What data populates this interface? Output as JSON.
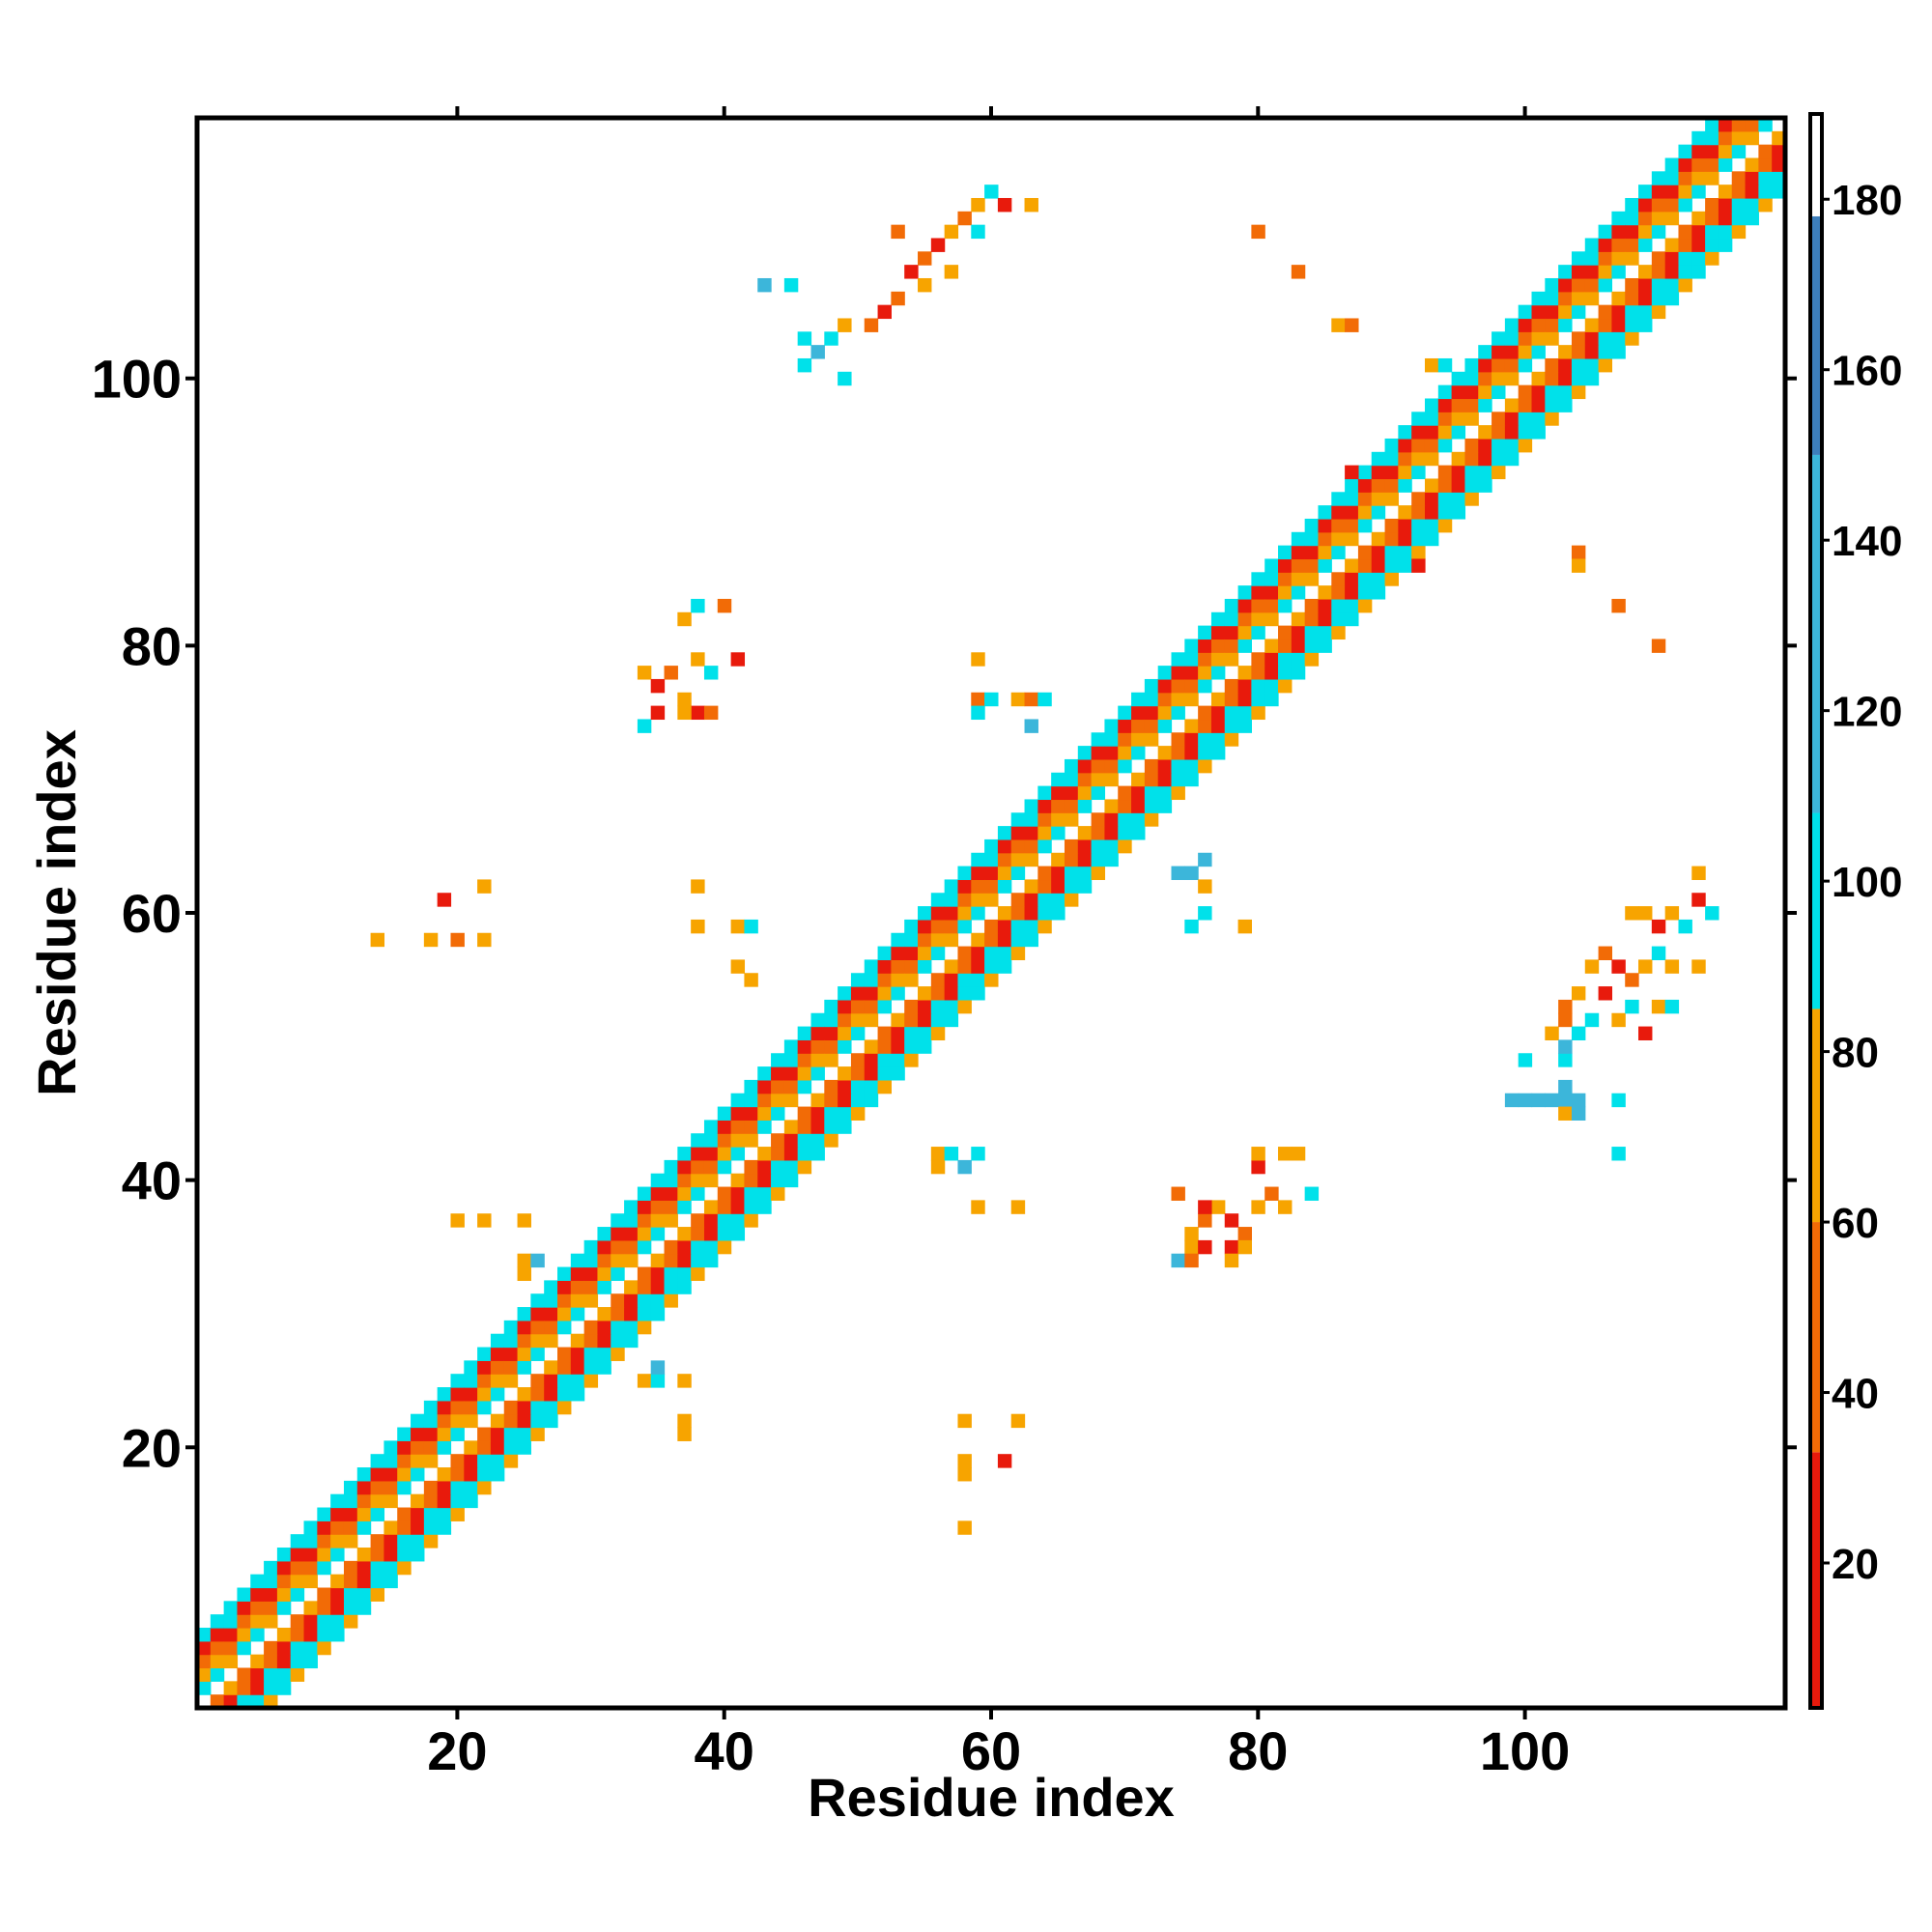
{
  "chart_data": {
    "type": "heatmap",
    "title": "",
    "xlabel": "Residue index",
    "ylabel": "Residue index",
    "xlim": [
      0.5,
      119.5
    ],
    "ylim": [
      0.5,
      119.5
    ],
    "x_ticks": [
      20,
      40,
      60,
      80,
      100
    ],
    "y_ticks": [
      20,
      40,
      60,
      80,
      100
    ],
    "x_tick_labels": [
      "20",
      "40",
      "60",
      "80",
      "100"
    ],
    "y_tick_labels": [
      "20",
      "40",
      "60",
      "80",
      "100"
    ],
    "grid": false,
    "colorbar": {
      "placement": "right",
      "range": [
        3,
        190
      ],
      "ticks": [
        20,
        40,
        60,
        80,
        100,
        120,
        140,
        160,
        180
      ],
      "tick_labels": [
        "20",
        "40",
        "60",
        "80",
        "100",
        "120",
        "140",
        "160",
        "180"
      ],
      "bands": [
        {
          "from": 3,
          "to": 33,
          "color": "#e81a0c"
        },
        {
          "from": 33,
          "to": 60,
          "color": "#f26b06"
        },
        {
          "from": 60,
          "to": 85,
          "color": "#f7a400"
        },
        {
          "from": 85,
          "to": 108,
          "color": "#00e1ea"
        },
        {
          "from": 108,
          "to": 150,
          "color": "#3cb6da"
        },
        {
          "from": 150,
          "to": 178,
          "color": "#3d7fbc"
        },
        {
          "from": 178,
          "to": 190,
          "color": "#ffffff"
        }
      ]
    },
    "colors": {
      "c1": "#e81a0c",
      "c2": "#f26b06",
      "c3": "#f7a400",
      "c4": "#00e1ea",
      "c5": "#3cb6da"
    },
    "pattern_note_excluded": true,
    "band_offsets": [
      {
        "d": 1,
        "c": "c4"
      },
      {
        "d": 2,
        "c": "c3"
      },
      {
        "d": 3,
        "c": "c2"
      },
      {
        "d": 4,
        "c": "c1"
      },
      {
        "d": 5,
        "c": "c4"
      }
    ],
    "contacts": [
      {
        "x": 46,
        "y": 101,
        "c": "c4"
      },
      {
        "x": 47,
        "y": 102,
        "c": "c5"
      },
      {
        "x": 48,
        "y": 103,
        "c": "c4"
      },
      {
        "x": 49,
        "y": 104,
        "c": "c3"
      },
      {
        "x": 51,
        "y": 104,
        "c": "c2"
      },
      {
        "x": 52,
        "y": 105,
        "c": "c1"
      },
      {
        "x": 53,
        "y": 106,
        "c": "c2"
      },
      {
        "x": 54,
        "y": 108,
        "c": "c1"
      },
      {
        "x": 55,
        "y": 109,
        "c": "c2"
      },
      {
        "x": 56,
        "y": 110,
        "c": "c1"
      },
      {
        "x": 57,
        "y": 111,
        "c": "c3"
      },
      {
        "x": 58,
        "y": 112,
        "c": "c2"
      },
      {
        "x": 59,
        "y": 113,
        "c": "c3"
      },
      {
        "x": 60,
        "y": 114,
        "c": "c4"
      },
      {
        "x": 61,
        "y": 113,
        "c": "c1"
      },
      {
        "x": 63,
        "y": 113,
        "c": "c3"
      },
      {
        "x": 53,
        "y": 111,
        "c": "c2"
      },
      {
        "x": 55,
        "y": 107,
        "c": "c3"
      },
      {
        "x": 57,
        "y": 108,
        "c": "c3"
      },
      {
        "x": 59,
        "y": 111,
        "c": "c4"
      },
      {
        "x": 43,
        "y": 107,
        "c": "c5"
      },
      {
        "x": 45,
        "y": 107,
        "c": "c4"
      },
      {
        "x": 46,
        "y": 103,
        "c": "c4"
      },
      {
        "x": 49,
        "y": 100,
        "c": "c4"
      },
      {
        "x": 80,
        "y": 111,
        "c": "c2"
      },
      {
        "x": 83,
        "y": 108,
        "c": "c2"
      },
      {
        "x": 86,
        "y": 104,
        "c": "c3"
      },
      {
        "x": 87,
        "y": 104,
        "c": "c2"
      },
      {
        "x": 34,
        "y": 78,
        "c": "c3"
      },
      {
        "x": 35,
        "y": 77,
        "c": "c1"
      },
      {
        "x": 36,
        "y": 78,
        "c": "c2"
      },
      {
        "x": 37,
        "y": 76,
        "c": "c3"
      },
      {
        "x": 38,
        "y": 79,
        "c": "c3"
      },
      {
        "x": 38,
        "y": 75,
        "c": "c1"
      },
      {
        "x": 39,
        "y": 78,
        "c": "c4"
      },
      {
        "x": 37,
        "y": 82,
        "c": "c3"
      },
      {
        "x": 38,
        "y": 83,
        "c": "c4"
      },
      {
        "x": 40,
        "y": 83,
        "c": "c2"
      },
      {
        "x": 41,
        "y": 79,
        "c": "c1"
      },
      {
        "x": 34,
        "y": 74,
        "c": "c4"
      },
      {
        "x": 35,
        "y": 75,
        "c": "c1"
      },
      {
        "x": 37,
        "y": 75,
        "c": "c3"
      },
      {
        "x": 39,
        "y": 75,
        "c": "c2"
      },
      {
        "x": 59,
        "y": 79,
        "c": "c3"
      },
      {
        "x": 59,
        "y": 76,
        "c": "c2"
      },
      {
        "x": 60,
        "y": 76,
        "c": "c4"
      },
      {
        "x": 62,
        "y": 76,
        "c": "c3"
      },
      {
        "x": 63,
        "y": 76,
        "c": "c2"
      },
      {
        "x": 64,
        "y": 76,
        "c": "c4"
      },
      {
        "x": 63,
        "y": 74,
        "c": "c5"
      },
      {
        "x": 59,
        "y": 75,
        "c": "c4"
      },
      {
        "x": 14,
        "y": 58,
        "c": "c3"
      },
      {
        "x": 18,
        "y": 58,
        "c": "c3"
      },
      {
        "x": 19,
        "y": 61,
        "c": "c1"
      },
      {
        "x": 20,
        "y": 58,
        "c": "c2"
      },
      {
        "x": 22,
        "y": 58,
        "c": "c3"
      },
      {
        "x": 22,
        "y": 62,
        "c": "c3"
      },
      {
        "x": 38,
        "y": 62,
        "c": "c3"
      },
      {
        "x": 38,
        "y": 59,
        "c": "c3"
      },
      {
        "x": 41,
        "y": 59,
        "c": "c3"
      },
      {
        "x": 42,
        "y": 59,
        "c": "c4"
      },
      {
        "x": 41,
        "y": 56,
        "c": "c3"
      },
      {
        "x": 42,
        "y": 55,
        "c": "c3"
      },
      {
        "x": 74,
        "y": 63,
        "c": "c5"
      },
      {
        "x": 75,
        "y": 63,
        "c": "c5"
      },
      {
        "x": 76,
        "y": 64,
        "c": "c5"
      },
      {
        "x": 76,
        "y": 62,
        "c": "c3"
      },
      {
        "x": 75,
        "y": 59,
        "c": "c4"
      },
      {
        "x": 76,
        "y": 60,
        "c": "c4"
      },
      {
        "x": 79,
        "y": 59,
        "c": "c3"
      },
      {
        "x": 108,
        "y": 60,
        "c": "c3"
      },
      {
        "x": 109,
        "y": 60,
        "c": "c3"
      },
      {
        "x": 110,
        "y": 59,
        "c": "c1"
      },
      {
        "x": 111,
        "y": 60,
        "c": "c3"
      },
      {
        "x": 112,
        "y": 59,
        "c": "c4"
      },
      {
        "x": 113,
        "y": 61,
        "c": "c1"
      },
      {
        "x": 114,
        "y": 60,
        "c": "c4"
      },
      {
        "x": 113,
        "y": 63,
        "c": "c3"
      },
      {
        "x": 105,
        "y": 56,
        "c": "c3"
      },
      {
        "x": 106,
        "y": 57,
        "c": "c2"
      },
      {
        "x": 107,
        "y": 56,
        "c": "c1"
      },
      {
        "x": 108,
        "y": 55,
        "c": "c2"
      },
      {
        "x": 109,
        "y": 56,
        "c": "c3"
      },
      {
        "x": 110,
        "y": 57,
        "c": "c4"
      },
      {
        "x": 111,
        "y": 56,
        "c": "c3"
      },
      {
        "x": 113,
        "y": 56,
        "c": "c3"
      },
      {
        "x": 103,
        "y": 53,
        "c": "c2"
      },
      {
        "x": 104,
        "y": 54,
        "c": "c3"
      },
      {
        "x": 105,
        "y": 52,
        "c": "c4"
      },
      {
        "x": 106,
        "y": 54,
        "c": "c1"
      },
      {
        "x": 107,
        "y": 52,
        "c": "c3"
      },
      {
        "x": 108,
        "y": 53,
        "c": "c4"
      },
      {
        "x": 109,
        "y": 51,
        "c": "c1"
      },
      {
        "x": 110,
        "y": 53,
        "c": "c3"
      },
      {
        "x": 111,
        "y": 53,
        "c": "c4"
      },
      {
        "x": 102,
        "y": 51,
        "c": "c3"
      },
      {
        "x": 103,
        "y": 52,
        "c": "c2"
      },
      {
        "x": 104,
        "y": 51,
        "c": "c4"
      },
      {
        "x": 99,
        "y": 46,
        "c": "c5"
      },
      {
        "x": 100,
        "y": 46,
        "c": "c5"
      },
      {
        "x": 101,
        "y": 46,
        "c": "c5"
      },
      {
        "x": 102,
        "y": 46,
        "c": "c5"
      },
      {
        "x": 103,
        "y": 46,
        "c": "c5"
      },
      {
        "x": 104,
        "y": 46,
        "c": "c5"
      },
      {
        "x": 103,
        "y": 47,
        "c": "c5"
      },
      {
        "x": 103,
        "y": 45,
        "c": "c3"
      },
      {
        "x": 104,
        "y": 45,
        "c": "c5"
      },
      {
        "x": 107,
        "y": 46,
        "c": "c4"
      },
      {
        "x": 107,
        "y": 42,
        "c": "c4"
      },
      {
        "x": 100,
        "y": 49,
        "c": "c4"
      },
      {
        "x": 103,
        "y": 49,
        "c": "c4"
      },
      {
        "x": 103,
        "y": 50,
        "c": "c5"
      },
      {
        "x": 75,
        "y": 36,
        "c": "c3"
      },
      {
        "x": 75,
        "y": 35,
        "c": "c3"
      },
      {
        "x": 76,
        "y": 35,
        "c": "c1"
      },
      {
        "x": 76,
        "y": 37,
        "c": "c2"
      },
      {
        "x": 77,
        "y": 38,
        "c": "c3"
      },
      {
        "x": 78,
        "y": 37,
        "c": "c1"
      },
      {
        "x": 79,
        "y": 36,
        "c": "c2"
      },
      {
        "x": 78,
        "y": 35,
        "c": "c1"
      },
      {
        "x": 79,
        "y": 35,
        "c": "c3"
      },
      {
        "x": 80,
        "y": 38,
        "c": "c3"
      },
      {
        "x": 81,
        "y": 39,
        "c": "c2"
      },
      {
        "x": 80,
        "y": 41,
        "c": "c1"
      },
      {
        "x": 80,
        "y": 42,
        "c": "c3"
      },
      {
        "x": 82,
        "y": 42,
        "c": "c3"
      },
      {
        "x": 83,
        "y": 42,
        "c": "c3"
      },
      {
        "x": 84,
        "y": 39,
        "c": "c4"
      },
      {
        "x": 82,
        "y": 38,
        "c": "c3"
      },
      {
        "x": 74,
        "y": 34,
        "c": "c5"
      },
      {
        "x": 75,
        "y": 34,
        "c": "c2"
      },
      {
        "x": 78,
        "y": 34,
        "c": "c3"
      },
      {
        "x": 74,
        "y": 39,
        "c": "c2"
      },
      {
        "x": 76,
        "y": 38,
        "c": "c1"
      },
      {
        "x": 56,
        "y": 42,
        "c": "c3"
      },
      {
        "x": 56,
        "y": 41,
        "c": "c3"
      },
      {
        "x": 57,
        "y": 42,
        "c": "c4"
      },
      {
        "x": 58,
        "y": 41,
        "c": "c5"
      },
      {
        "x": 59,
        "y": 42,
        "c": "c4"
      },
      {
        "x": 59,
        "y": 38,
        "c": "c3"
      },
      {
        "x": 62,
        "y": 38,
        "c": "c3"
      },
      {
        "x": 20,
        "y": 37,
        "c": "c3"
      },
      {
        "x": 22,
        "y": 37,
        "c": "c3"
      },
      {
        "x": 25,
        "y": 37,
        "c": "c3"
      },
      {
        "x": 25,
        "y": 34,
        "c": "c3"
      },
      {
        "x": 25,
        "y": 33,
        "c": "c3"
      },
      {
        "x": 26,
        "y": 34,
        "c": "c5"
      },
      {
        "x": 34,
        "y": 25,
        "c": "c3"
      },
      {
        "x": 35,
        "y": 25,
        "c": "c4"
      },
      {
        "x": 35,
        "y": 26,
        "c": "c5"
      },
      {
        "x": 37,
        "y": 25,
        "c": "c3"
      },
      {
        "x": 37,
        "y": 22,
        "c": "c3"
      },
      {
        "x": 37,
        "y": 21,
        "c": "c3"
      },
      {
        "x": 58,
        "y": 22,
        "c": "c3"
      },
      {
        "x": 62,
        "y": 22,
        "c": "c3"
      },
      {
        "x": 61,
        "y": 19,
        "c": "c1"
      },
      {
        "x": 58,
        "y": 19,
        "c": "c3"
      },
      {
        "x": 58,
        "y": 18,
        "c": "c3"
      },
      {
        "x": 58,
        "y": 14,
        "c": "c3"
      },
      {
        "x": 104,
        "y": 87,
        "c": "c2"
      },
      {
        "x": 104,
        "y": 86,
        "c": "c3"
      },
      {
        "x": 107,
        "y": 83,
        "c": "c2"
      },
      {
        "x": 110,
        "y": 80,
        "c": "c2"
      },
      {
        "x": 92,
        "y": 86,
        "c": "c1"
      },
      {
        "x": 87,
        "y": 93,
        "c": "c1"
      },
      {
        "x": 95,
        "y": 93,
        "c": "c3"
      },
      {
        "x": 98,
        "y": 93,
        "c": "c4"
      },
      {
        "x": 98,
        "y": 94,
        "c": "c5"
      },
      {
        "x": 93,
        "y": 101,
        "c": "c3"
      },
      {
        "x": 94,
        "y": 101,
        "c": "c4"
      }
    ]
  }
}
